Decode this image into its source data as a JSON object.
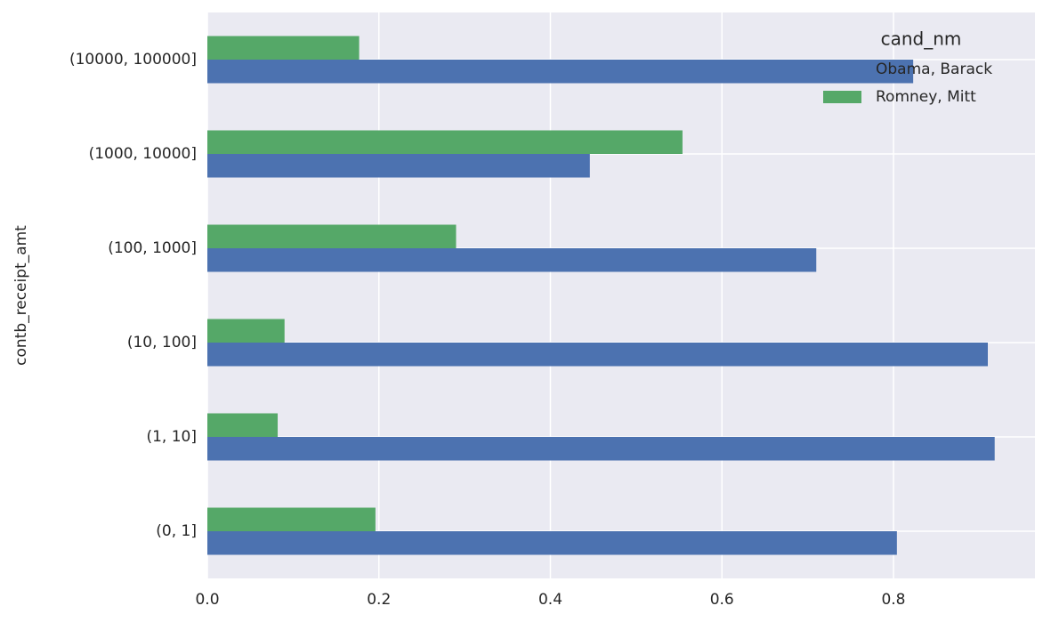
{
  "chart_data": {
    "type": "barh",
    "ylabel": "contb_receipt_amt",
    "categories": [
      "(0, 1]",
      "(1, 10]",
      "(10, 100]",
      "(100, 1000]",
      "(1000, 10000]",
      "(10000, 100000]"
    ],
    "series": [
      {
        "name": "Obama, Barack",
        "color": "#4c72b0",
        "values": [
          0.804,
          0.918,
          0.91,
          0.71,
          0.446,
          0.823
        ]
      },
      {
        "name": "Romney, Mitt",
        "color": "#55a868",
        "values": [
          0.196,
          0.082,
          0.09,
          0.29,
          0.554,
          0.177
        ]
      }
    ],
    "legend_title": "cand_nm",
    "legend": "upper right",
    "xlim": [
      0,
      0.965
    ],
    "xticks": [
      {
        "value": 0,
        "label": "0.0"
      },
      0.2,
      0.4,
      0.6,
      0.8
    ],
    "grid": true
  }
}
